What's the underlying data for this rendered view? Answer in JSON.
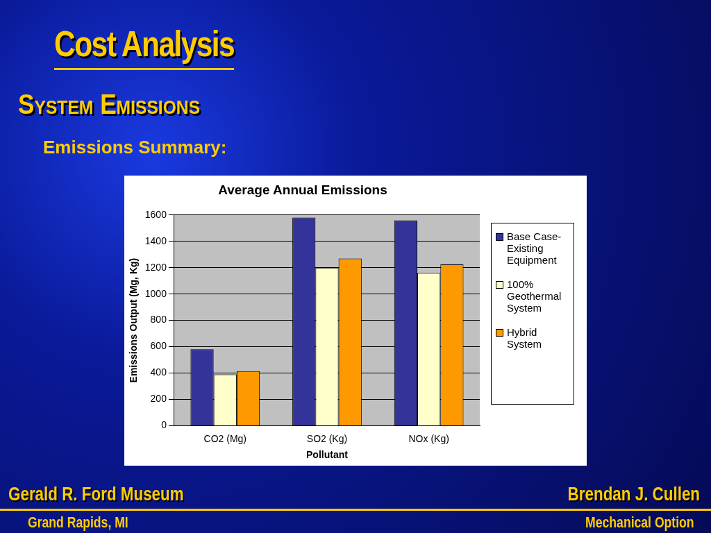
{
  "chart_data": {
    "type": "bar",
    "title": "Average Annual Emissions",
    "xlabel": "Pollutant",
    "ylabel": "Emissions Output (Mg, Kg)",
    "categories": [
      "CO2 (Mg)",
      "SO2 (Kg)",
      "NOx (Kg)"
    ],
    "series": [
      {
        "name": "Base Case-Existing Equipment",
        "color": "#333399",
        "values": [
          580,
          1580,
          1560
        ]
      },
      {
        "name": "100% Geothermal System",
        "color": "#ffffcc",
        "values": [
          390,
          1200,
          1160
        ]
      },
      {
        "name": "Hybrid System",
        "color": "#ff9900",
        "values": [
          415,
          1270,
          1225
        ]
      }
    ],
    "ylim": [
      0,
      1600
    ],
    "yticks": [
      0,
      200,
      400,
      600,
      800,
      1000,
      1200,
      1400,
      1600
    ],
    "grid": "y",
    "legend": "right",
    "annotations": [
      "Cost Analysis",
      "System Emissions",
      "Emissions Summary:",
      "Gerald R. Ford Museum",
      "Grand Rapids, MI",
      "Brendan J. Cullen",
      "Mechanical Option"
    ]
  }
}
